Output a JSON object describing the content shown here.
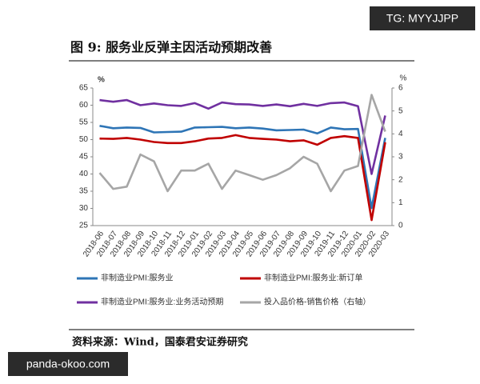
{
  "watermark_top": "TG: MYYJJPP",
  "watermark_bottom": "panda-okoo.com",
  "source": "资料来源：Wind，国泰君安证券研究",
  "chart_data": {
    "type": "line",
    "title": "图 9:  服务业反弹主因活动预期改善",
    "ylabel": "%",
    "y2label": "%",
    "categories": [
      "2018-06",
      "2018-07",
      "2018-08",
      "2018-09",
      "2018-10",
      "2018-11",
      "2018-12",
      "2019-01",
      "2019-02",
      "2019-03",
      "2019-04",
      "2019-05",
      "2019-06",
      "2019-07",
      "2019-08",
      "2019-09",
      "2019-10",
      "2019-11",
      "2019-12",
      "2020-01",
      "2020-02",
      "2020-03"
    ],
    "ylim": [
      25,
      65
    ],
    "yticks": [
      25,
      30,
      35,
      40,
      45,
      50,
      55,
      60,
      65
    ],
    "y2lim": [
      0,
      6
    ],
    "y2ticks": [
      0,
      1,
      2,
      3,
      4,
      5,
      6
    ],
    "series": [
      {
        "name": "非制造业PMI:服务业",
        "color": "#2e75b6",
        "values": [
          54.0,
          53.3,
          53.5,
          53.4,
          52.1,
          52.2,
          52.3,
          53.5,
          53.6,
          53.7,
          53.3,
          53.5,
          53.2,
          52.7,
          52.8,
          52.9,
          51.8,
          53.5,
          53.0,
          53.1,
          30.1,
          50.5
        ]
      },
      {
        "name": "非制造业PMI:服务业:新订单",
        "color": "#c00000",
        "values": [
          50.3,
          50.2,
          50.5,
          50.0,
          49.3,
          49.0,
          49.0,
          49.5,
          50.3,
          50.5,
          51.3,
          50.5,
          50.2,
          50.0,
          49.5,
          49.8,
          48.5,
          50.5,
          51.0,
          50.5,
          26.6,
          49.2
        ]
      },
      {
        "name": "非制造业PMI:服务业:业务活动预期",
        "color": "#7030a0",
        "values": [
          61.5,
          61.0,
          61.5,
          60.0,
          60.5,
          60.0,
          59.8,
          60.6,
          59.0,
          60.8,
          60.3,
          60.2,
          59.8,
          60.2,
          59.7,
          60.4,
          59.8,
          60.6,
          60.8,
          59.7,
          40.0,
          57.0
        ]
      },
      {
        "name": "投入品价格-销售价格（右轴）",
        "color": "#a6a6a6",
        "axis": "y2",
        "values": [
          2.3,
          1.6,
          1.7,
          3.1,
          2.8,
          1.5,
          2.4,
          2.4,
          2.7,
          1.6,
          2.4,
          2.2,
          2.0,
          2.2,
          2.5,
          3.0,
          2.7,
          1.5,
          2.4,
          2.6,
          5.7,
          4.1
        ]
      }
    ]
  }
}
